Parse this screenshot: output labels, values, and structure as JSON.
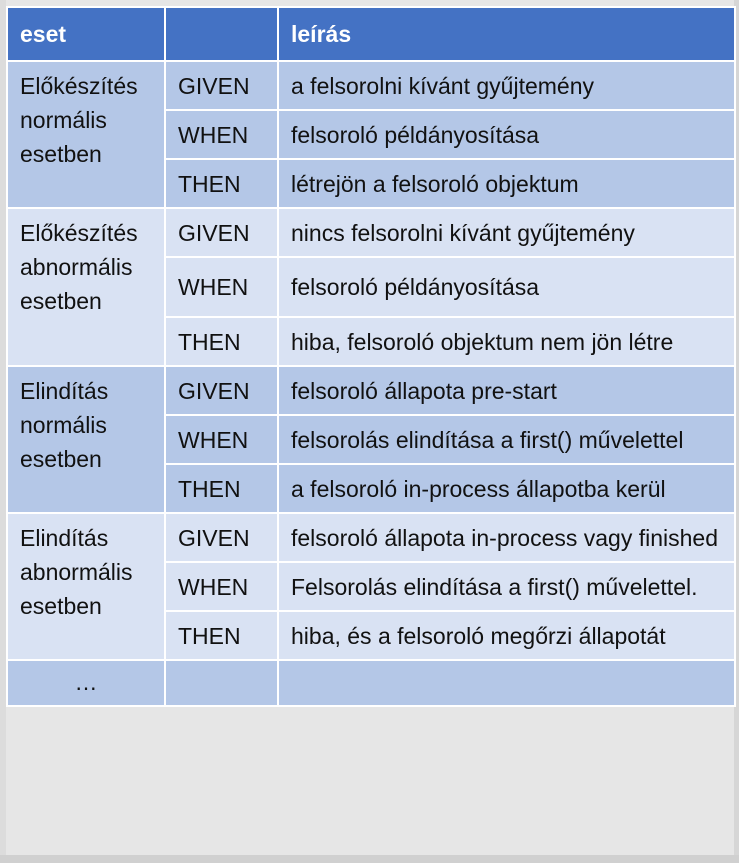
{
  "header": {
    "col_case": "eset",
    "col_step": "",
    "col_desc": "leírás"
  },
  "cases": [
    {
      "name_lines": [
        "Előkészítés",
        "normális",
        "esetben"
      ],
      "steps": [
        {
          "key": "GIVEN",
          "text": "a felsorolni kívánt gyűjtemény"
        },
        {
          "key": "WHEN",
          "text": "felsoroló példányosítása"
        },
        {
          "key": "THEN",
          "text": "létrejön a felsoroló objektum"
        }
      ]
    },
    {
      "name_lines": [
        "Előkészítés",
        "abnormális",
        "esetben"
      ],
      "steps": [
        {
          "key": "GIVEN",
          "text": "nincs felsorolni kívánt gyűjtemény"
        },
        {
          "key": "WHEN",
          "text": "felsoroló példányosítása"
        },
        {
          "key": "THEN",
          "text": "hiba, felsoroló objektum nem jön létre"
        }
      ]
    },
    {
      "name_lines": [
        "Elindítás",
        "normális",
        "esetben"
      ],
      "steps": [
        {
          "key": "GIVEN",
          "text": "felsoroló állapota pre-start"
        },
        {
          "key": "WHEN",
          "text": "felsorolás elindítása a first() művelettel"
        },
        {
          "key": "THEN",
          "text": "a felsoroló in-process állapotba kerül"
        }
      ]
    },
    {
      "name_lines": [
        "Elindítás",
        "abnormális",
        "esetben"
      ],
      "steps": [
        {
          "key": "GIVEN",
          "text": "felsoroló állapota in-process vagy finished"
        },
        {
          "key": "WHEN",
          "text": "Felsorolás elindítása a first() művelettel."
        },
        {
          "key": "THEN",
          "text": "hiba, és a felsoroló megőrzi állapotát"
        }
      ]
    }
  ],
  "footer_row": {
    "case": "…",
    "step": "",
    "desc": ""
  },
  "colors": {
    "header_bg": "#4472c4",
    "row_dark": "#b4c7e7",
    "row_light": "#d9e2f3"
  }
}
